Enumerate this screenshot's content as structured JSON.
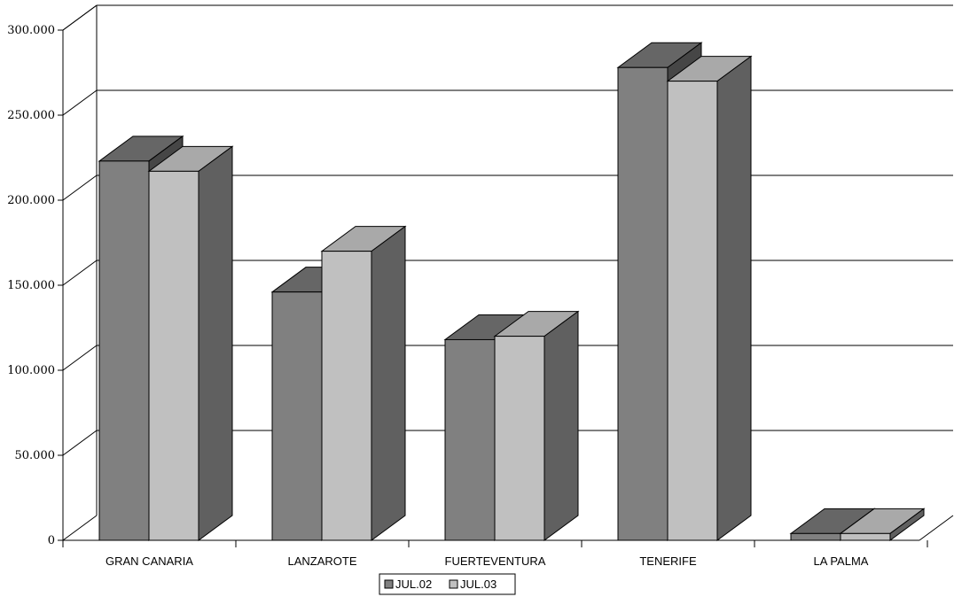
{
  "chart_data": {
    "type": "bar",
    "style": "3d-clustered-column",
    "categories": [
      "GRAN CANARIA",
      "LANZAROTE",
      "FUERTEVENTURA",
      "TENERIFE",
      "LA PALMA"
    ],
    "series": [
      {
        "name": "JUL.02",
        "values": [
          223000,
          146000,
          118000,
          278000,
          4000
        ],
        "color": "#808080"
      },
      {
        "name": "JUL.03",
        "values": [
          217000,
          170000,
          120000,
          270000,
          4000
        ],
        "color": "#c0c0c0"
      }
    ],
    "yticks": [
      "0",
      "50.000",
      "100.000",
      "150.000",
      "200.000",
      "250.000",
      "300.000"
    ],
    "ylim": [
      0,
      300000
    ],
    "grid": true,
    "legend_position": "bottom-center",
    "title": "",
    "xlabel": "",
    "ylabel": ""
  }
}
